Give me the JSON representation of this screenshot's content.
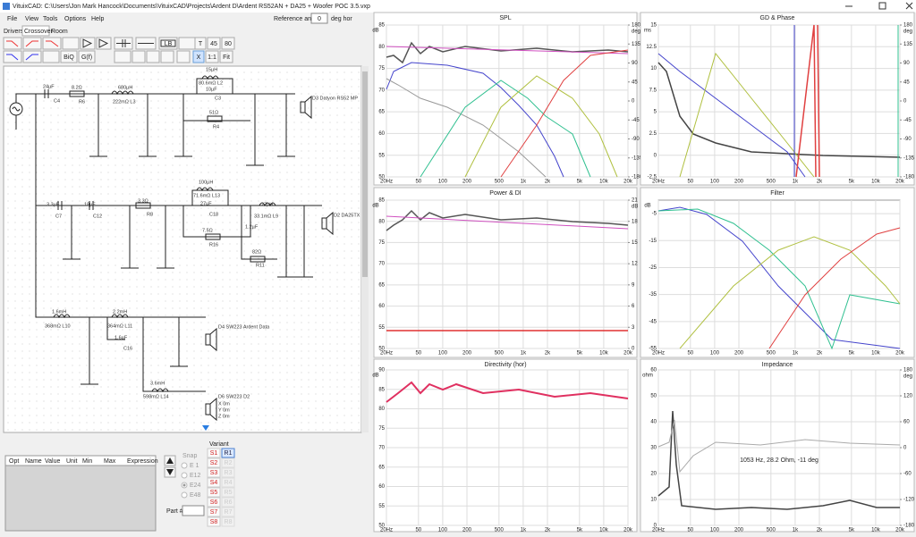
{
  "window": {
    "title": "VituixCAD: C:\\Users\\Jon Mark Hancock\\Documents\\VituixCAD\\Projects\\Ardent D\\Ardent RS52AN + DA25 + Woofer POC 3.5.vxp",
    "menu": [
      "File",
      "View",
      "Tools",
      "Options",
      "Help"
    ]
  },
  "tabs": [
    "Drivers",
    "Crossover",
    "Room"
  ],
  "reference": {
    "label": "Reference angle",
    "value": "0",
    "unit": "deg hor"
  },
  "toolbar": [
    "LB",
    "T",
    "45",
    "80",
    "BiQ",
    "G(f)",
    "X",
    "1:1",
    "Fit"
  ],
  "schematic": {
    "labels": [
      "24µF",
      "C4",
      "8.2Ω",
      "R6",
      "680µH",
      "222mΩ L3",
      "15µH",
      "80.6mΩ L2",
      "10µF",
      "C3",
      "51Ω",
      "R4",
      "D3 Datyon RS52 MP",
      "3.3µF",
      "C7",
      "18µF",
      "C12",
      "3.3Ω",
      "R8",
      "100µH",
      "71.6mΩ L13",
      "27µF",
      "C18",
      "7.5Ω",
      "R16",
      "27µH",
      "33.1mΩ L9",
      "1.2µF",
      "82Ω",
      "R11",
      "D2 DA25TX",
      "1.6mH",
      "368mΩ L10",
      "2.2mH",
      "364mΩ L11",
      "1.6µF",
      "C16",
      "D4 SW223 Ardent Data",
      "3.6mH",
      "598mΩ L14",
      "D6 SW223 D2",
      "X 0m",
      "Y 0m",
      "Z 0m"
    ]
  },
  "table": {
    "headers": [
      "Opt",
      "Name",
      "Value",
      "Unit",
      "Min",
      "Max",
      "Expression"
    ]
  },
  "snap": {
    "label": "Snap",
    "options": [
      "E 1",
      "E12",
      "E24",
      "E48"
    ]
  },
  "variant": {
    "label": "Variant",
    "s": [
      "S1",
      "S2",
      "S3",
      "S4",
      "S5",
      "S6",
      "S7",
      "S8"
    ],
    "r": [
      "R1",
      "R2",
      "R3",
      "R4",
      "R5",
      "R6",
      "R7",
      "R8"
    ]
  },
  "part": "Part #",
  "charts": [
    {
      "title": "SPL",
      "y_unit": "dB",
      "y2_unit": "deg",
      "ylim": [
        50,
        85
      ],
      "yticks": [
        85,
        80,
        75,
        70,
        65,
        60,
        55,
        50
      ],
      "y2lim": [
        -180,
        180
      ],
      "y2ticks": [
        180,
        135,
        90,
        45,
        0,
        -45,
        -90,
        -135,
        -180
      ]
    },
    {
      "title": "GD & Phase",
      "y_unit": "ms",
      "y2_unit": "deg",
      "ylim": [
        -2.5,
        15
      ],
      "yticks": [
        15,
        12.5,
        10,
        7.5,
        5,
        2.5,
        0,
        -2.5
      ],
      "y2lim": [
        -180,
        180
      ],
      "y2ticks": [
        180,
        135,
        90,
        45,
        0,
        -45,
        -90,
        -135,
        -180
      ]
    },
    {
      "title": "Power & DI",
      "y_unit": "dB",
      "y2_unit": "dB",
      "ylim": [
        50,
        85
      ],
      "yticks": [
        85,
        80,
        75,
        70,
        65,
        60,
        55,
        50
      ],
      "y2lim": [
        0,
        21
      ],
      "y2ticks": [
        21,
        18,
        15,
        12,
        9,
        6,
        3,
        0
      ]
    },
    {
      "title": "Filter",
      "y_unit": "dB",
      "ylim": [
        -55,
        0
      ],
      "yticks": [
        -5,
        -15,
        -25,
        -35,
        -45,
        -55
      ]
    },
    {
      "title": "Directivity (hor)",
      "y_unit": "dB",
      "ylim": [
        50,
        90
      ],
      "yticks": [
        90,
        85,
        80,
        75,
        70,
        65,
        60,
        55,
        50
      ]
    },
    {
      "title": "Impedance",
      "y_unit": "ohm",
      "y2_unit": "deg",
      "ylim": [
        0,
        60
      ],
      "yticks": [
        60,
        50,
        40,
        30,
        20,
        10,
        0
      ],
      "y2lim": [
        -180,
        180
      ],
      "y2ticks": [
        180,
        120,
        60,
        0,
        -60,
        -120,
        -180
      ],
      "annotation": "1053 Hz, 28.2 Ohm, -11 deg"
    }
  ],
  "xticks": [
    {
      "value": 20,
      "label": "20Hz"
    },
    50,
    100,
    200,
    500,
    {
      "value": 1000,
      "label": "1k"
    },
    {
      "value": 2000,
      "label": "2k"
    },
    {
      "value": 5000,
      "label": "5k"
    },
    {
      "value": 10000,
      "label": "10k"
    },
    {
      "value": 20000,
      "label": "20k"
    }
  ],
  "xlim": [
    20,
    20000
  ]
}
